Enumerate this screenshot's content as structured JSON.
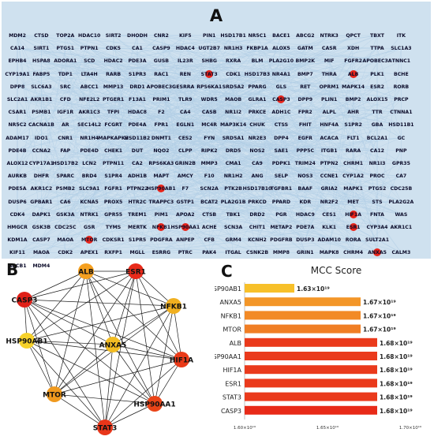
{
  "panel_a": {
    "label": "A",
    "hub_color": "#e8241a",
    "rows": [
      [
        "MDM2",
        "CTSD",
        "TOP2A",
        "HDAC10",
        "SIRT2",
        "DHODH",
        "CNR2",
        "KIF5",
        "PIN1",
        "HSD17B1",
        "NR5C1",
        "BACE1",
        "ABCG2",
        "NTRK3",
        "QPCT",
        "TBXT",
        "ITK"
      ],
      [
        "CA14",
        "SIRT1",
        "PTGS1",
        "PTPN1",
        "CDK5",
        "CA1",
        "CASP9",
        "HDAC4",
        "UGT2B7",
        "NR1H3",
        "FKBP1A",
        "ALOX5",
        "GATM",
        "CASR",
        "XDH",
        "TTPA",
        "SLC1A3"
      ],
      [
        "EPHB4",
        "HSPA8",
        "ADORA1",
        "SCD",
        "HDAC2",
        "PDE3A",
        "GUSB",
        "IL23R",
        "SHBG",
        "RXRA",
        "BLM",
        "PLA2G10",
        "BMP2K",
        "MIF",
        "FGFR2",
        "APOBEC3A",
        "TNNC1"
      ],
      [
        "CYP19A1",
        "FABP5",
        "TDP1",
        "LTA4H",
        "RARB",
        "S1PR3",
        "RAC1",
        "REN",
        "STAT3",
        "CDK1",
        "HSD17B3",
        "NR4A1",
        "BMP7",
        "THRA",
        "ALB",
        "PLK1",
        "BCHE"
      ],
      [
        "DPP8",
        "SLC6A3",
        "SRC",
        "ABCC1",
        "MMP13",
        "DRD1",
        "APOBEC3G",
        "ESRRA",
        "RPS6KA1",
        "SRD5A2",
        "PPARG",
        "GLS",
        "RET",
        "OPRM1",
        "MAPK14",
        "ESR2",
        "RORB"
      ],
      [
        "SLC2A1",
        "AKR1B1",
        "CFD",
        "NFE2L2",
        "PTGER1",
        "F13A1",
        "PRIM1",
        "TLR9",
        "WDR5",
        "MAOB",
        "GLRA1",
        "CASP3",
        "DPP9",
        "PLIN1",
        "BMP2",
        "ALOX15",
        "PRCP"
      ],
      [
        "CSAR1",
        "PSMB1",
        "IGF1R",
        "AKR1C3",
        "TFPI",
        "HDAC8",
        "F2",
        "CA4",
        "CASB",
        "NR1I2",
        "PRKCE",
        "ADH1C",
        "FPR2",
        "ALPL",
        "AHR",
        "TTR",
        "CTNNA1"
      ],
      [
        "NR5C2",
        "CACNA1B",
        "AR",
        "SEC14L2",
        "FCGRT",
        "PDE4A",
        "FPR1",
        "EGLN1",
        "MC4R",
        "MAP3K14",
        "CHUK",
        "CTSS",
        "FHIT",
        "HNF4A",
        "S1PR2",
        "GBA",
        "HSD11B1"
      ],
      [
        "ADAM17",
        "IDO1",
        "CNR1",
        "NR1H4",
        "MAPKAPK2",
        "HSD11B2",
        "DNMT1",
        "CES2",
        "FYN",
        "SRD5A1",
        "NR2E3",
        "DPP4",
        "EGFR",
        "ACACA",
        "FLT1",
        "BCL2A1",
        "GC"
      ],
      [
        "PDE4B",
        "CCNA2",
        "FAP",
        "PDE4D",
        "CHEK1",
        "DUT",
        "NQO2",
        "CLPP",
        "RIPK2",
        "DRD5",
        "NOS2",
        "SAE1",
        "PPP5C",
        "ITGB1",
        "RARA",
        "CA12",
        "PNP"
      ],
      [
        "ALOX12",
        "CYP17A1",
        "HSD17B2",
        "LCN2",
        "PTPN11",
        "CA2",
        "RPS6KA3",
        "GRIN2B",
        "MMP3",
        "CMA1",
        "CA9",
        "PDPK1",
        "TRIM24",
        "PTPN2",
        "CHRM1",
        "NR1I3",
        "GPR35"
      ],
      [
        "AURKB",
        "DHFR",
        "SPARC",
        "BRD4",
        "S1PR4",
        "ADH1B",
        "MAPT",
        "AMCY",
        "F10",
        "NR1H2",
        "ANG",
        "SELP",
        "NOS3",
        "CCNE1",
        "CYP1A2",
        "PROC",
        "CA7"
      ],
      [
        "PDE5A",
        "AKR1C2",
        "PSMB2",
        "SLC9A1",
        "FGFR1",
        "PTPN22",
        "HSP90AB1",
        "F7",
        "SCN2A",
        "PTK2B",
        "HSD17B10",
        "TGFBR1",
        "BAAF",
        "GRIA2",
        "MAPK1",
        "PTGS2",
        "CDC25B"
      ],
      [
        "DUSP6",
        "GPBAR1",
        "CA6",
        "KCNA5",
        "PROX5",
        "HTR2C",
        "TRAPPC3",
        "GSTP1",
        "BCAT2",
        "PLA2G1B",
        "PRKCD",
        "PPARD",
        "KDR",
        "NR2F2",
        "MET",
        "STS",
        "PLA2G2A"
      ],
      [
        "CDK4",
        "DAPK1",
        "GSK3A",
        "NTRK1",
        "GPR55",
        "TREM1",
        "PIM1",
        "APOA2",
        "CTSB",
        "TBK1",
        "DRD2",
        "PGR",
        "HDAC9",
        "CES1",
        "HIF1A",
        "FNTA",
        "WAS"
      ],
      [
        "HMGCR",
        "GSK3B",
        "CDC25C",
        "GSR",
        "TYMS",
        "MERTK",
        "NFKB1",
        "HSP90AA1",
        "ACHE",
        "SCN3A",
        "CHIT1",
        "METAP2",
        "PDE7A",
        "KLK1",
        "ESR1",
        "CYP3A4",
        "AKR1C1"
      ],
      [
        "KDM1A",
        "CASP7",
        "MAOA",
        "MTOR",
        "CDKSR1",
        "S1PR5",
        "PDGFRA",
        "ANPEP",
        "CFB",
        "GRM4",
        "KCNH2",
        "PDGFRB",
        "DUSP3",
        "ADAM10",
        "RORA",
        "SULT2A1"
      ],
      [
        "KIF11",
        "MAOA",
        "CDK2",
        "APEX1",
        "RXFP1",
        "MGLL",
        "ESRRG",
        "PTRC",
        "PAK4",
        "ITGAL",
        "CSNK2B",
        "MMP8",
        "GRIN1",
        "MAPK8",
        "CHRM4",
        "ANXA5",
        "CALM3"
      ],
      [
        "ABCB1",
        "MDM4"
      ]
    ]
  },
  "panel_b": {
    "label": "B",
    "nodes": [
      {
        "name": "ALB",
        "color": "#f5a020"
      },
      {
        "name": "ESR1",
        "color": "#e82a1a"
      },
      {
        "name": "NFKB1",
        "color": "#f0b020"
      },
      {
        "name": "HIF1A",
        "color": "#ea3a18"
      },
      {
        "name": "HSP90AA1",
        "color": "#ea4418"
      },
      {
        "name": "STAT3",
        "color": "#e8361a"
      },
      {
        "name": "MTOR",
        "color": "#f09a1e"
      },
      {
        "name": "HSP90AB1",
        "color": "#f7d22a"
      },
      {
        "name": "CASP3",
        "color": "#e02018"
      },
      {
        "name": "ANXA5",
        "color": "#f2bc22"
      }
    ]
  },
  "panel_c": {
    "label": "C",
    "chart_data": {
      "type": "bar",
      "orientation": "horizontal",
      "title": "MCC Score",
      "categories": [
        "HSP90AB1",
        "ANXA5",
        "NFKB1",
        "MTOR",
        "ALB",
        "HSP90AA1",
        "HIF1A",
        "ESR1",
        "STAT3",
        "CASP3"
      ],
      "values": [
        1.63e+19,
        1.67e+19,
        1.67e+19,
        1.67e+19,
        1.68e+19,
        1.68e+19,
        1.68e+19,
        1.68e+19,
        1.68e+19,
        1.68e+19
      ],
      "value_labels": [
        "1.63×10¹⁹",
        "1.67×10¹⁹",
        "1.67×10¹⁹",
        "1.67×10¹⁹",
        "1.68×10¹⁹",
        "1.68×10¹⁹",
        "1.68×10¹⁹",
        "1.68×10¹⁹",
        "1.68×10¹⁹",
        "1.68×10¹⁹"
      ],
      "bar_colors": [
        "#f7c02a",
        "#f39628",
        "#f28a26",
        "#f07e24",
        "#ea3a1c",
        "#ea3a1c",
        "#ea3a1c",
        "#ea3a1c",
        "#ea3a1c",
        "#e82a18"
      ],
      "xlim": [
        1.6e+19,
        1.7e+19
      ],
      "xticks": [
        "1.60×10¹⁹",
        "1.65×10¹⁹",
        "1.70×10¹⁹"
      ],
      "xtick_values": [
        1.6e+19,
        1.65e+19,
        1.7e+19
      ]
    }
  }
}
